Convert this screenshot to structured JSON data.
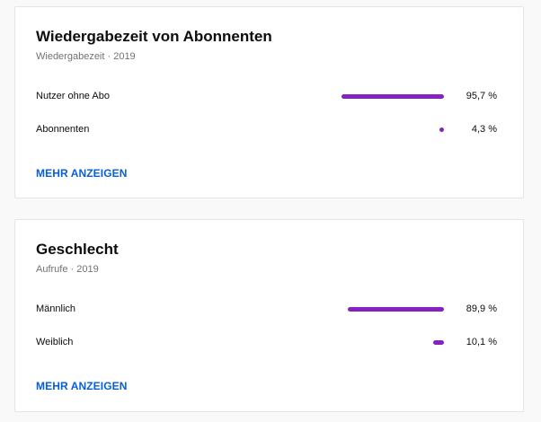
{
  "colors": {
    "bar": "#8522c0",
    "link": "#065fd4",
    "card_bg": "#ffffff",
    "page_bg": "#f9f9f9"
  },
  "cards": [
    {
      "title": "Wiedergabezeit von Abonnenten",
      "subtitle": "Wiedergabezeit · 2019",
      "rows": [
        {
          "label": "Nutzer ohne Abo",
          "percent": 95.7,
          "value": "95,7 %"
        },
        {
          "label": "Abonnenten",
          "percent": 4.3,
          "value": "4,3 %"
        }
      ],
      "more_label": "MEHR ANZEIGEN"
    },
    {
      "title": "Geschlecht",
      "subtitle": "Aufrufe · 2019",
      "rows": [
        {
          "label": "Männlich",
          "percent": 89.9,
          "value": "89,9 %"
        },
        {
          "label": "Weiblich",
          "percent": 10.1,
          "value": "10,1 %"
        }
      ],
      "more_label": "MEHR ANZEIGEN"
    }
  ]
}
